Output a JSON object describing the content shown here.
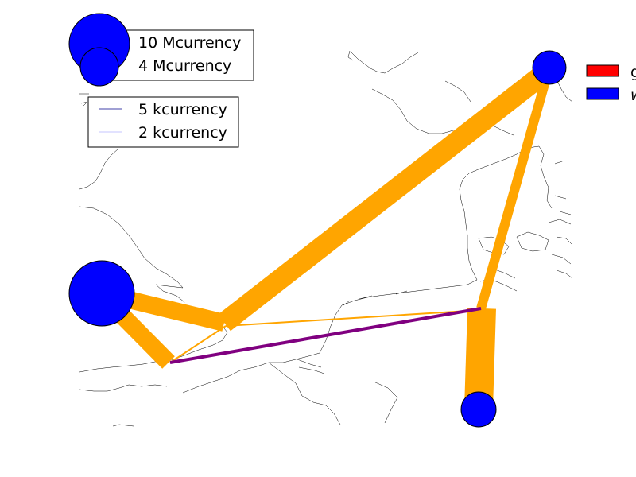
{
  "colors": {
    "flow": "#ffa500",
    "line_flow": "#800080",
    "bus": "#0000ff",
    "coast": "#000000",
    "legend_red": "#ff0000",
    "legend_blue": "#0000ff"
  },
  "legend_bus_sizes": [
    {
      "label": "10 Mcurrency"
    },
    {
      "label": "4 Mcurrency"
    }
  ],
  "legend_flows": [
    {
      "label": "5 kcurrency"
    },
    {
      "label": "2 kcurrency"
    }
  ],
  "legend_carriers": [
    {
      "label": "g"
    },
    {
      "label": "w"
    }
  ]
}
